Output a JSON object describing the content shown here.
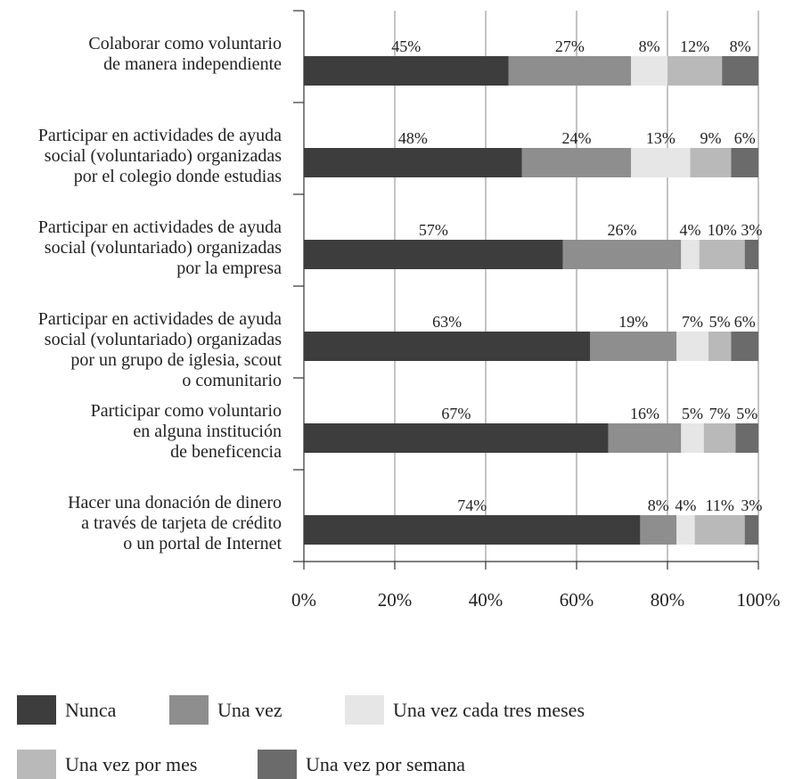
{
  "chart_data": {
    "type": "bar",
    "orientation": "horizontal",
    "stacked": true,
    "title": "",
    "xlabel": "",
    "ylabel": "",
    "xlim": [
      0,
      100
    ],
    "x_ticks": [
      "0%",
      "20%",
      "40%",
      "60%",
      "80%",
      "100%"
    ],
    "grid": true,
    "legend_position": "bottom",
    "categories": [
      [
        "Colaborar como voluntario",
        "de manera independiente"
      ],
      [
        "Participar en actividades de ayuda",
        "social  (voluntariado) organizadas",
        "por el colegio  donde estudias"
      ],
      [
        "Participar en actividades de ayuda",
        "social  (voluntariado) organizadas",
        "por la empresa"
      ],
      [
        "Participar en actividades de ayuda",
        "social  (voluntariado) organizadas",
        "por un grupo de iglesia, scout",
        "o comunitario"
      ],
      [
        "Participar como voluntario",
        "en alguna institución",
        "de beneficencia"
      ],
      [
        "Hacer una donación de dinero",
        "a través de tarjeta de crédito",
        "o un portal de Internet"
      ]
    ],
    "series": [
      {
        "name": "Nunca",
        "color": "#3d3d3d",
        "values": [
          45,
          48,
          57,
          63,
          67,
          74
        ],
        "labels": [
          "45%",
          "48%",
          "57%",
          "63%",
          "67%",
          "74%"
        ]
      },
      {
        "name": "Una vez",
        "color": "#8e8e8e",
        "values": [
          27,
          24,
          26,
          19,
          16,
          8
        ],
        "labels": [
          "27%",
          "24%",
          "26%",
          "19%",
          "16%",
          "8%"
        ]
      },
      {
        "name": "Una vez cada tres meses",
        "color": "#e6e6e6",
        "values": [
          8,
          13,
          4,
          7,
          5,
          4
        ],
        "labels": [
          "8%",
          "13%",
          "4%",
          "7%",
          "5%",
          "4%"
        ]
      },
      {
        "name": "Una vez por mes",
        "color": "#b9b9b9",
        "values": [
          12,
          9,
          10,
          5,
          7,
          11
        ],
        "labels": [
          "12%",
          "9%",
          "10%",
          "5%",
          "7%",
          "11%"
        ]
      },
      {
        "name": "Una vez por semana",
        "color": "#6b6b6b",
        "values": [
          8,
          6,
          3,
          6,
          5,
          3
        ],
        "labels": [
          "8%",
          "6%",
          "3%",
          "6%",
          "5%",
          "3%"
        ]
      }
    ]
  }
}
